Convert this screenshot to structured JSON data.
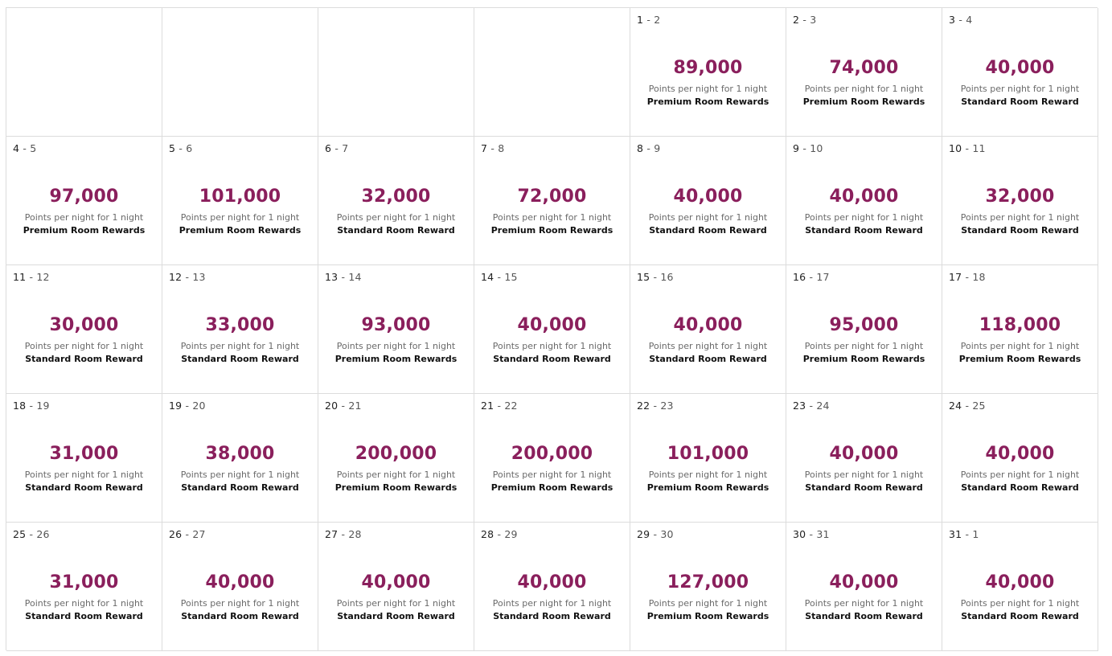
{
  "calendar": {
    "per_night_label": "Points per night for 1 night",
    "cells": [
      {
        "empty": true
      },
      {
        "empty": true
      },
      {
        "empty": true
      },
      {
        "empty": true
      },
      {
        "start": "1",
        "end": "2",
        "points": "89,000",
        "reward": "Premium Room Rewards"
      },
      {
        "start": "2",
        "end": "3",
        "points": "74,000",
        "reward": "Premium Room Rewards"
      },
      {
        "start": "3",
        "end": "4",
        "points": "40,000",
        "reward": "Standard Room Reward"
      },
      {
        "start": "4",
        "end": "5",
        "points": "97,000",
        "reward": "Premium Room Rewards"
      },
      {
        "start": "5",
        "end": "6",
        "points": "101,000",
        "reward": "Premium Room Rewards"
      },
      {
        "start": "6",
        "end": "7",
        "points": "32,000",
        "reward": "Standard Room Reward"
      },
      {
        "start": "7",
        "end": "8",
        "points": "72,000",
        "reward": "Premium Room Rewards"
      },
      {
        "start": "8",
        "end": "9",
        "points": "40,000",
        "reward": "Standard Room Reward"
      },
      {
        "start": "9",
        "end": "10",
        "points": "40,000",
        "reward": "Standard Room Reward"
      },
      {
        "start": "10",
        "end": "11",
        "points": "32,000",
        "reward": "Standard Room Reward"
      },
      {
        "start": "11",
        "end": "12",
        "points": "30,000",
        "reward": "Standard Room Reward"
      },
      {
        "start": "12",
        "end": "13",
        "points": "33,000",
        "reward": "Standard Room Reward"
      },
      {
        "start": "13",
        "end": "14",
        "points": "93,000",
        "reward": "Premium Room Rewards"
      },
      {
        "start": "14",
        "end": "15",
        "points": "40,000",
        "reward": "Standard Room Reward"
      },
      {
        "start": "15",
        "end": "16",
        "points": "40,000",
        "reward": "Standard Room Reward"
      },
      {
        "start": "16",
        "end": "17",
        "points": "95,000",
        "reward": "Premium Room Rewards"
      },
      {
        "start": "17",
        "end": "18",
        "points": "118,000",
        "reward": "Premium Room Rewards"
      },
      {
        "start": "18",
        "end": "19",
        "points": "31,000",
        "reward": "Standard Room Reward"
      },
      {
        "start": "19",
        "end": "20",
        "points": "38,000",
        "reward": "Standard Room Reward"
      },
      {
        "start": "20",
        "end": "21",
        "points": "200,000",
        "reward": "Premium Room Rewards"
      },
      {
        "start": "21",
        "end": "22",
        "points": "200,000",
        "reward": "Premium Room Rewards"
      },
      {
        "start": "22",
        "end": "23",
        "points": "101,000",
        "reward": "Premium Room Rewards"
      },
      {
        "start": "23",
        "end": "24",
        "points": "40,000",
        "reward": "Standard Room Reward"
      },
      {
        "start": "24",
        "end": "25",
        "points": "40,000",
        "reward": "Standard Room Reward"
      },
      {
        "start": "25",
        "end": "26",
        "points": "31,000",
        "reward": "Standard Room Reward"
      },
      {
        "start": "26",
        "end": "27",
        "points": "40,000",
        "reward": "Standard Room Reward"
      },
      {
        "start": "27",
        "end": "28",
        "points": "40,000",
        "reward": "Standard Room Reward"
      },
      {
        "start": "28",
        "end": "29",
        "points": "40,000",
        "reward": "Standard Room Reward"
      },
      {
        "start": "29",
        "end": "30",
        "points": "127,000",
        "reward": "Premium Room Rewards"
      },
      {
        "start": "30",
        "end": "31",
        "points": "40,000",
        "reward": "Standard Room Reward"
      },
      {
        "start": "31",
        "end": "1",
        "points": "40,000",
        "reward": "Standard Room Reward"
      }
    ]
  },
  "colors": {
    "points": "#8a1f5c",
    "border": "#dcdcdc"
  }
}
